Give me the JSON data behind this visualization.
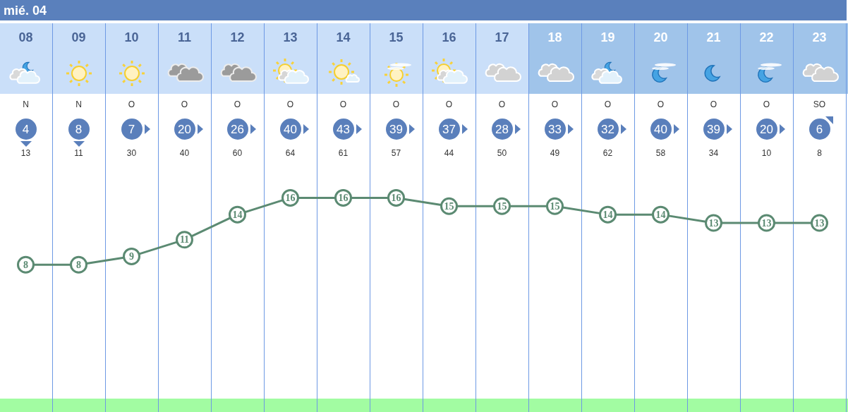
{
  "chart_data": {
    "type": "line",
    "title": "mié. 04",
    "categories": [
      "08",
      "09",
      "10",
      "11",
      "12",
      "13",
      "14",
      "15",
      "16",
      "17",
      "18",
      "19",
      "20",
      "21",
      "22",
      "23"
    ],
    "values": [
      8,
      8,
      9,
      11,
      14,
      16,
      16,
      16,
      15,
      15,
      15,
      14,
      14,
      13,
      13,
      13
    ],
    "color": "#5b8a72",
    "ylim": [
      -8,
      20
    ],
    "tick_labels": "x",
    "grid": "x",
    "marker": "circle",
    "line_style": "solid",
    "data_labels": true,
    "annotations": [
      "N",
      "N",
      "O",
      "O",
      "O",
      "O",
      "O",
      "O",
      "O",
      "O",
      "O",
      "O",
      "O",
      "O",
      "O",
      "SO",
      "4",
      "8",
      "7",
      "20",
      "26",
      "40",
      "43",
      "39",
      "37",
      "28",
      "33",
      "32",
      "40",
      "39",
      "20",
      "6",
      "13",
      "11",
      "30",
      "40",
      "60",
      "64",
      "61",
      "57",
      "44",
      "50",
      "49",
      "62",
      "58",
      "34",
      "10",
      "8"
    ]
  }
}
